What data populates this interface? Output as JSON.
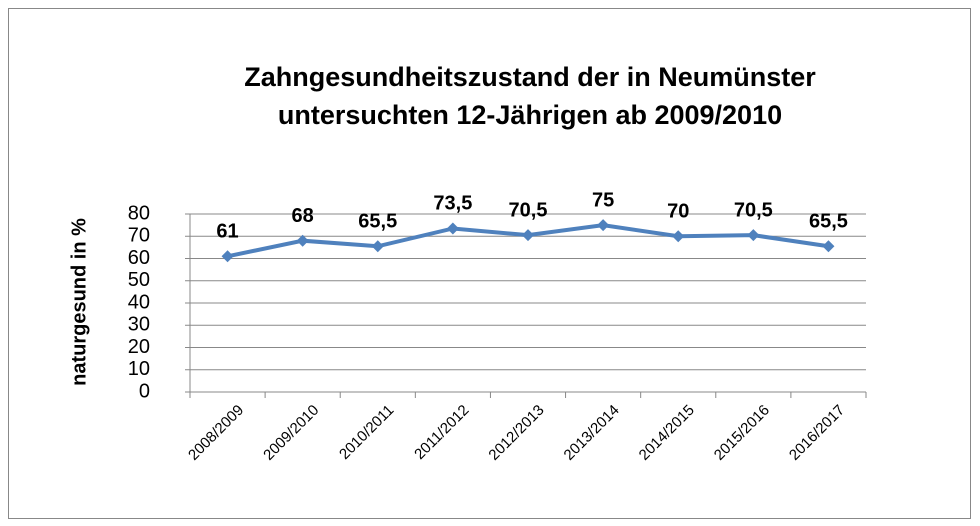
{
  "chart_data": {
    "type": "line",
    "title": "Zahngesundheitszustand der in Neumünster untersuchten 12-Jährigen ab 2009/2010",
    "y_label": "naturgesund in %",
    "categories": [
      "2008/2009",
      "2009/2010",
      "2010/2011",
      "2011/2012",
      "2012/2013",
      "2013/2014",
      "2014/2015",
      "2015/2016",
      "2016/2017"
    ],
    "values": [
      61,
      68,
      65.5,
      73.5,
      70.5,
      75,
      70,
      70.5,
      65.5
    ],
    "value_labels": [
      "61",
      "68",
      "65,5",
      "73,5",
      "70,5",
      "75",
      "70",
      "70,5",
      "65,5"
    ],
    "color": "#4f81bd",
    "ylim": [
      0,
      80
    ],
    "yticks": [
      0,
      10,
      20,
      30,
      40,
      50,
      60,
      70,
      80
    ],
    "grid": true
  }
}
